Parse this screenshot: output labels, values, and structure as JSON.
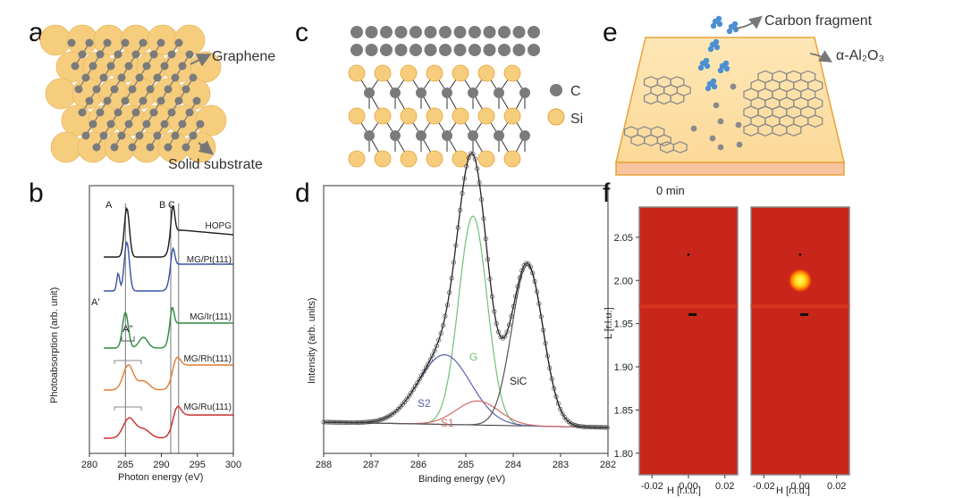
{
  "panels": {
    "a": {
      "label": "a",
      "graphene_label": "Graphene",
      "substrate_label": "Solid substrate",
      "colors": {
        "substrate": "#f6cd7c",
        "carbon": "#7b7b7b"
      }
    },
    "c": {
      "label": "c",
      "legend": [
        {
          "name": "C",
          "color": "#7b7b7b"
        },
        {
          "name": "Si",
          "color": "#f6cd7c"
        }
      ]
    },
    "e": {
      "label": "e",
      "fragment_label": "Carbon fragment",
      "substrate_label": "α-Al₂O₃",
      "colors": {
        "top": "#fce2aa",
        "side": "#f6c5a0",
        "edge": "#e8a23a",
        "fragment": "#4c8fd0"
      }
    },
    "b": {
      "label": "b",
      "ylabel": "Photoabsorption (arb. unit)",
      "xlabel": "Photon energy (eV)",
      "peak_labels": [
        "A",
        "B",
        "C"
      ],
      "feature_labels": [
        "A'",
        "A''"
      ],
      "chart_data": {
        "type": "line",
        "xlim": [
          280,
          300
        ],
        "xticks": [
          280,
          285,
          290,
          295,
          300
        ],
        "reference_lines": [
          285.0,
          291.3,
          292.4
        ],
        "series": [
          {
            "name": "HOPG",
            "color": "#1a1a1a",
            "offset": 0.0
          },
          {
            "name": "MG/Pt(111)",
            "color": "#3852a4",
            "offset": 0.17
          },
          {
            "name": "MG/Ir(111)",
            "color": "#2c8a3d",
            "offset": 0.36
          },
          {
            "name": "MG/Rh(111)",
            "color": "#e07a2e",
            "offset": 0.57
          },
          {
            "name": "MG/Ru(111)",
            "color": "#cc2b2b",
            "offset": 0.77
          }
        ]
      }
    },
    "d": {
      "label": "d",
      "ylabel": "Intensity (arb. units)",
      "xlabel": "Binding energy (eV)",
      "chart_data": {
        "type": "line",
        "xlim": [
          288,
          282
        ],
        "xticks": [
          288,
          287,
          286,
          285,
          284,
          283,
          282
        ],
        "components": [
          {
            "name": "G",
            "center": 284.85,
            "height": 0.78,
            "width": 0.3,
            "color": "#6fc07a"
          },
          {
            "name": "S2",
            "center": 285.45,
            "height": 0.26,
            "width": 0.55,
            "color": "#5b5fae"
          },
          {
            "name": "S1",
            "center": 284.75,
            "height": 0.09,
            "width": 0.45,
            "color": "#d46a6a"
          },
          {
            "name": "SiC",
            "center": 283.7,
            "height": 0.6,
            "width": 0.33,
            "color": "#555555"
          }
        ],
        "baseline": 0.03
      }
    },
    "f": {
      "label": "f",
      "time_label": "0 min",
      "ylabel": "L [r.l.u.]",
      "xlabel": "H [r.l.u.]",
      "chart_data": {
        "type": "heatmap",
        "ylim": [
          1.775,
          2.085
        ],
        "yticks": [
          "2.05",
          "2.00",
          "1.95",
          "1.90",
          "1.85",
          "1.80"
        ],
        "ytick_values": [
          2.05,
          2.0,
          1.95,
          1.9,
          1.85,
          1.8
        ],
        "xlim": [
          -0.027,
          0.027
        ],
        "xticks": [
          "-0.02",
          "0.00",
          "0.02"
        ],
        "xtick_values": [
          -0.02,
          0.0,
          0.02
        ],
        "maps": [
          {
            "spot_H": 0.0,
            "spot_L": 2.0,
            "intensity": "none"
          },
          {
            "spot_H": 0.0,
            "spot_L": 2.0,
            "intensity": "bright"
          }
        ]
      }
    }
  }
}
